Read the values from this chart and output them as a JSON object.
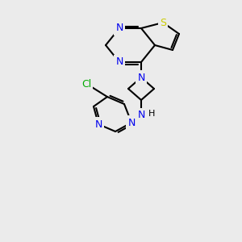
{
  "bg_color": "#ebebeb",
  "bond_color": "#000000",
  "bond_width": 1.5,
  "atom_colors": {
    "N": "#0000ee",
    "S": "#cccc00",
    "Cl": "#00aa00",
    "C": "#000000",
    "H": "#000000"
  },
  "font_size": 9,
  "font_size_small": 8
}
